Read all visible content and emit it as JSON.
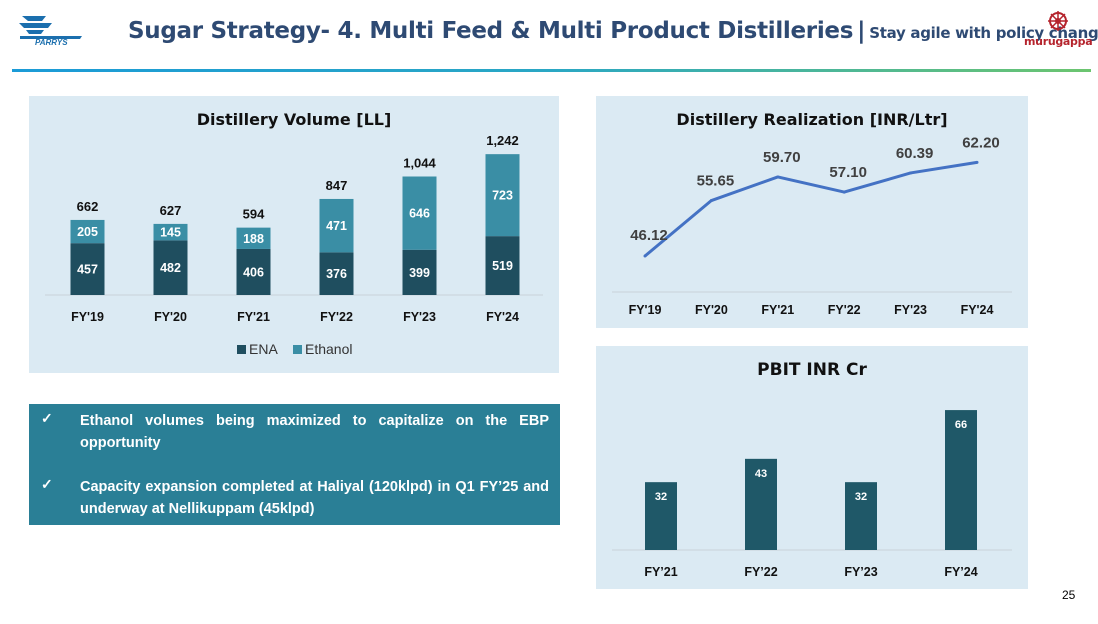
{
  "header": {
    "title": "Sugar Strategy- 4. Multi Feed & Multi Product Distilleries",
    "separator": "|",
    "subtitle": "Stay agile with policy changes",
    "left_logo_text": "PARRYS",
    "right_logo_text": "murugappa"
  },
  "bullets": [
    {
      "check": "✓",
      "text": "Ethanol volumes being maximized to capitalize on the EBP opportunity"
    },
    {
      "check": "✓",
      "text": "Capacity expansion completed at Haliyal (120klpd) in Q1 FY’25 and underway at Nellikuppam (45klpd)"
    }
  ],
  "page_number": "25",
  "colors": {
    "ena": "#1f4e5f",
    "ethanol": "#3a8ea5",
    "line": "#4472c4",
    "pbit": "#1f5868",
    "panel_bg": "#dbeaf3",
    "bullet_bg": "#2a7f96"
  },
  "chart_data": [
    {
      "type": "bar",
      "stacked": true,
      "title": "Distillery Volume [LL]",
      "categories": [
        "FY'19",
        "FY'20",
        "FY'21",
        "FY'22",
        "FY'23",
        "FY'24"
      ],
      "series": [
        {
          "name": "ENA",
          "values": [
            457,
            482,
            406,
            376,
            399,
            519
          ]
        },
        {
          "name": "Ethanol",
          "values": [
            205,
            145,
            188,
            471,
            646,
            723
          ]
        }
      ],
      "totals": [
        "662",
        "627",
        "594",
        "847",
        "1,044",
        "1,242"
      ],
      "legend": "bottom",
      "grid": false
    },
    {
      "type": "line",
      "title": "Distillery Realization [INR/Ltr]",
      "categories": [
        "FY'19",
        "FY'20",
        "FY'21",
        "FY'22",
        "FY'23",
        "FY'24"
      ],
      "values": [
        46.12,
        55.65,
        59.7,
        57.1,
        60.39,
        62.2
      ],
      "labels": [
        "46.12",
        "55.65",
        "59.70",
        "57.10",
        "60.39",
        "62.20"
      ],
      "grid": false
    },
    {
      "type": "bar",
      "title": "PBIT INR Cr",
      "categories": [
        "FY’21",
        "FY’22",
        "FY’23",
        "FY’24"
      ],
      "values": [
        32,
        43,
        32,
        66
      ],
      "grid": false
    }
  ]
}
